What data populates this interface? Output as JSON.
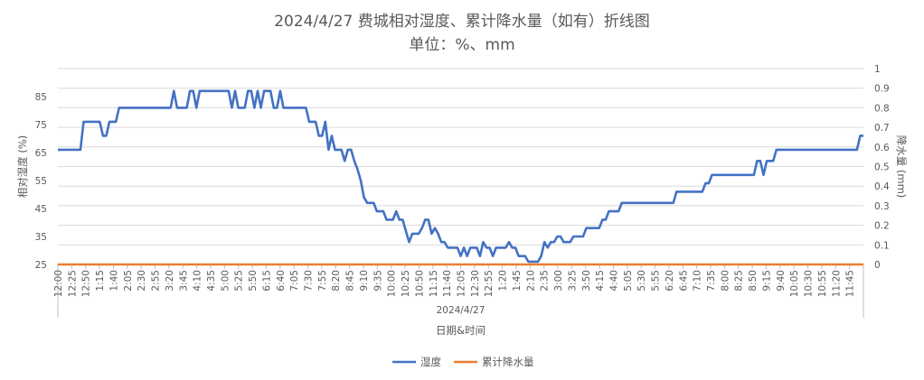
{
  "chart_data": {
    "type": "line",
    "title": "2024/4/27 费城相对湿度、累计降水量（如有）折线图",
    "subtitle": "单位：%、mm",
    "xlabel": "日期&时间",
    "date_label": "2024/4/27",
    "ylabel": "相对湿度 (%)",
    "y2label": "降水量 (mm)",
    "ylim": [
      25,
      95
    ],
    "y2lim": [
      0,
      1
    ],
    "y_ticks": [
      "25",
      "35",
      "45",
      "55",
      "65",
      "75",
      "85"
    ],
    "y2_ticks": [
      "0",
      "0.1",
      "0.2",
      "0.3",
      "0.4",
      "0.5",
      "0.6",
      "0.7",
      "0.8",
      "0.9",
      "1"
    ],
    "x_tick_labels": [
      "12:00",
      "12:25",
      "12:50",
      "1:15",
      "1:40",
      "2:05",
      "2:30",
      "2:55",
      "3:20",
      "3:45",
      "4:10",
      "4:35",
      "5:00",
      "5:25",
      "5:50",
      "6:15",
      "6:40",
      "7:05",
      "7:30",
      "7:55",
      "8:20",
      "8:45",
      "9:10",
      "9:35",
      "10:00",
      "10:25",
      "10:50",
      "11:15",
      "11:40",
      "12:05",
      "12:30",
      "12:55",
      "1:20",
      "1:45",
      "2:10",
      "2:35",
      "3:00",
      "3:25",
      "3:50",
      "4:15",
      "4:40",
      "5:05",
      "5:30",
      "5:55",
      "6:20",
      "6:45",
      "7:10",
      "7:35",
      "8:00",
      "8:25",
      "8:50",
      "9:15",
      "9:40",
      "10:05",
      "10:30",
      "10:55",
      "11:20",
      "11:45"
    ],
    "legend_position": "bottom",
    "grid": true,
    "series": [
      {
        "name": "湿度",
        "axis": "left",
        "color": "#4472C4",
        "values": [
          66,
          66,
          66,
          66,
          66,
          66,
          66,
          66,
          76,
          76,
          76,
          76,
          76,
          76,
          71,
          71,
          76,
          76,
          76,
          81,
          81,
          81,
          81,
          81,
          81,
          81,
          81,
          81,
          81,
          81,
          81,
          81,
          81,
          81,
          81,
          81,
          87,
          81,
          81,
          81,
          81,
          87,
          87,
          81,
          87,
          87,
          87,
          87,
          87,
          87,
          87,
          87,
          87,
          87,
          81,
          87,
          81,
          81,
          81,
          87,
          87,
          81,
          87,
          81,
          87,
          87,
          87,
          81,
          81,
          87,
          81,
          81,
          81,
          81,
          81,
          81,
          81,
          81,
          76,
          76,
          76,
          71,
          71,
          76,
          66,
          71,
          66,
          66,
          66,
          62,
          66,
          66,
          62,
          59,
          55,
          49,
          47,
          47,
          47,
          44,
          44,
          44,
          41,
          41,
          41,
          44,
          41,
          41,
          37,
          33,
          36,
          36,
          36,
          38,
          41,
          41,
          36,
          38,
          36,
          33,
          33,
          31,
          31,
          31,
          31,
          28,
          31,
          28,
          31,
          31,
          31,
          28,
          33,
          31,
          31,
          28,
          31,
          31,
          31,
          31,
          33,
          31,
          31,
          28,
          28,
          28,
          26,
          26,
          26,
          26,
          28,
          33,
          31,
          33,
          33,
          35,
          35,
          33,
          33,
          33,
          35,
          35,
          35,
          35,
          38,
          38,
          38,
          38,
          38,
          41,
          41,
          44,
          44,
          44,
          44,
          47,
          47,
          47,
          47,
          47,
          47,
          47,
          47,
          47,
          47,
          47,
          47,
          47,
          47,
          47,
          47,
          47,
          51,
          51,
          51,
          51,
          51,
          51,
          51,
          51,
          51,
          54,
          54,
          57,
          57,
          57,
          57,
          57,
          57,
          57,
          57,
          57,
          57,
          57,
          57,
          57,
          57,
          62,
          62,
          57,
          62,
          62,
          62,
          66,
          66,
          66,
          66,
          66,
          66,
          66,
          66,
          66,
          66,
          66,
          66,
          66,
          66,
          66,
          66,
          66,
          66,
          66,
          66,
          66,
          66,
          66,
          66,
          66,
          66,
          71,
          71
        ]
      },
      {
        "name": "累计降水量",
        "axis": "right",
        "color": "#ED7D31",
        "values": [
          0,
          0
        ]
      }
    ]
  }
}
